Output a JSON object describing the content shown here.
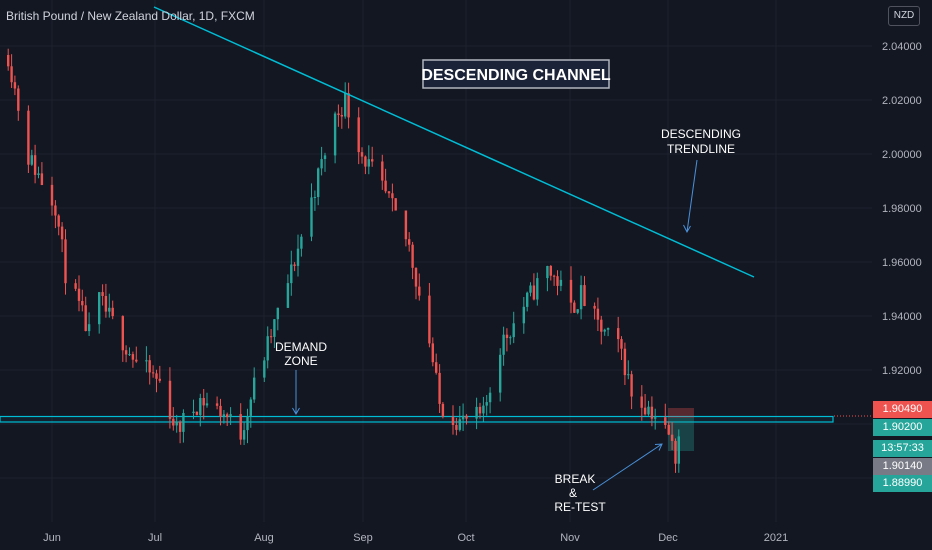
{
  "header": {
    "symbol_title": "British Pound / New Zealand Dollar, 1D, FXCM",
    "currency": "NZD"
  },
  "price_tags": {
    "last": "1.90490",
    "level": "1.90200",
    "countdown": "13:57:33",
    "bid": "1.90140",
    "target": "1.88990"
  },
  "colors": {
    "background": "#131722",
    "up": "#26a69a",
    "down": "#ef5350",
    "line": "#00bcd4",
    "text": "#d1d4dc",
    "muted": "#8a8e9a",
    "grid": "#1e222d"
  },
  "chart_data": {
    "type": "candlestick",
    "symbol": "GBP/NZD",
    "interval": "1D",
    "y_ticks": [
      "2.04000",
      "2.02000",
      "2.00000",
      "1.98000",
      "1.96000",
      "1.94000",
      "1.92000"
    ],
    "ylim": [
      1.8725,
      2.0575
    ],
    "x_ticks": [
      "Jun",
      "Jul",
      "Aug",
      "Sep",
      "Oct",
      "Nov",
      "Dec",
      "2021"
    ],
    "title_box": "DESCENDING CHANNEL",
    "annotations": {
      "trendline": [
        "DESCENDING",
        "TRENDLINE"
      ],
      "demand": [
        "DEMAND",
        "ZONE"
      ],
      "retest": [
        "BREAK",
        "&",
        "RE-TEST"
      ]
    },
    "trendline": {
      "start": [
        "2020-05-06",
        2.0626
      ],
      "end": [
        "2020-12-26",
        1.9535
      ]
    },
    "demand_zone": {
      "top": 1.9023,
      "bottom": 1.9002,
      "end": "2021-01-11"
    },
    "anchors": [
      [
        "2020-05-19",
        2.038
      ],
      [
        "2020-05-25",
        2.002
      ],
      [
        "2020-06-02",
        1.985
      ],
      [
        "2020-06-05",
        1.961
      ],
      [
        "2020-06-12",
        1.939
      ],
      [
        "2020-06-15",
        1.951
      ],
      [
        "2020-06-26",
        1.929
      ],
      [
        "2020-07-03",
        1.922
      ],
      [
        "2020-07-08",
        1.905
      ],
      [
        "2020-07-15",
        1.916
      ],
      [
        "2020-07-22",
        1.911
      ],
      [
        "2020-07-27",
        1.904
      ],
      [
        "2020-07-31",
        1.921
      ],
      [
        "2020-08-04",
        1.935
      ],
      [
        "2020-08-11",
        1.961
      ],
      [
        "2020-08-18",
        1.991
      ],
      [
        "2020-08-24",
        2.016
      ],
      [
        "2020-08-27",
        2.022
      ],
      [
        "2020-09-01",
        2.003
      ],
      [
        "2020-09-09",
        1.986
      ],
      [
        "2020-09-15",
        1.97
      ],
      [
        "2020-09-21",
        1.937
      ],
      [
        "2020-09-24",
        1.914
      ],
      [
        "2020-09-30",
        1.908
      ],
      [
        "2020-10-07",
        1.91
      ],
      [
        "2020-10-12",
        1.935
      ],
      [
        "2020-10-21",
        1.953
      ],
      [
        "2020-10-26",
        1.962
      ],
      [
        "2020-10-29",
        1.958
      ],
      [
        "2020-11-02",
        1.948
      ],
      [
        "2020-11-05",
        1.953
      ],
      [
        "2020-11-10",
        1.942
      ],
      [
        "2020-11-17",
        1.933
      ],
      [
        "2020-11-20",
        1.918
      ],
      [
        "2020-11-26",
        1.912
      ],
      [
        "2020-12-01",
        1.903
      ],
      [
        "2020-12-03",
        1.896
      ],
      [
        "2020-12-04",
        1.904
      ]
    ]
  }
}
